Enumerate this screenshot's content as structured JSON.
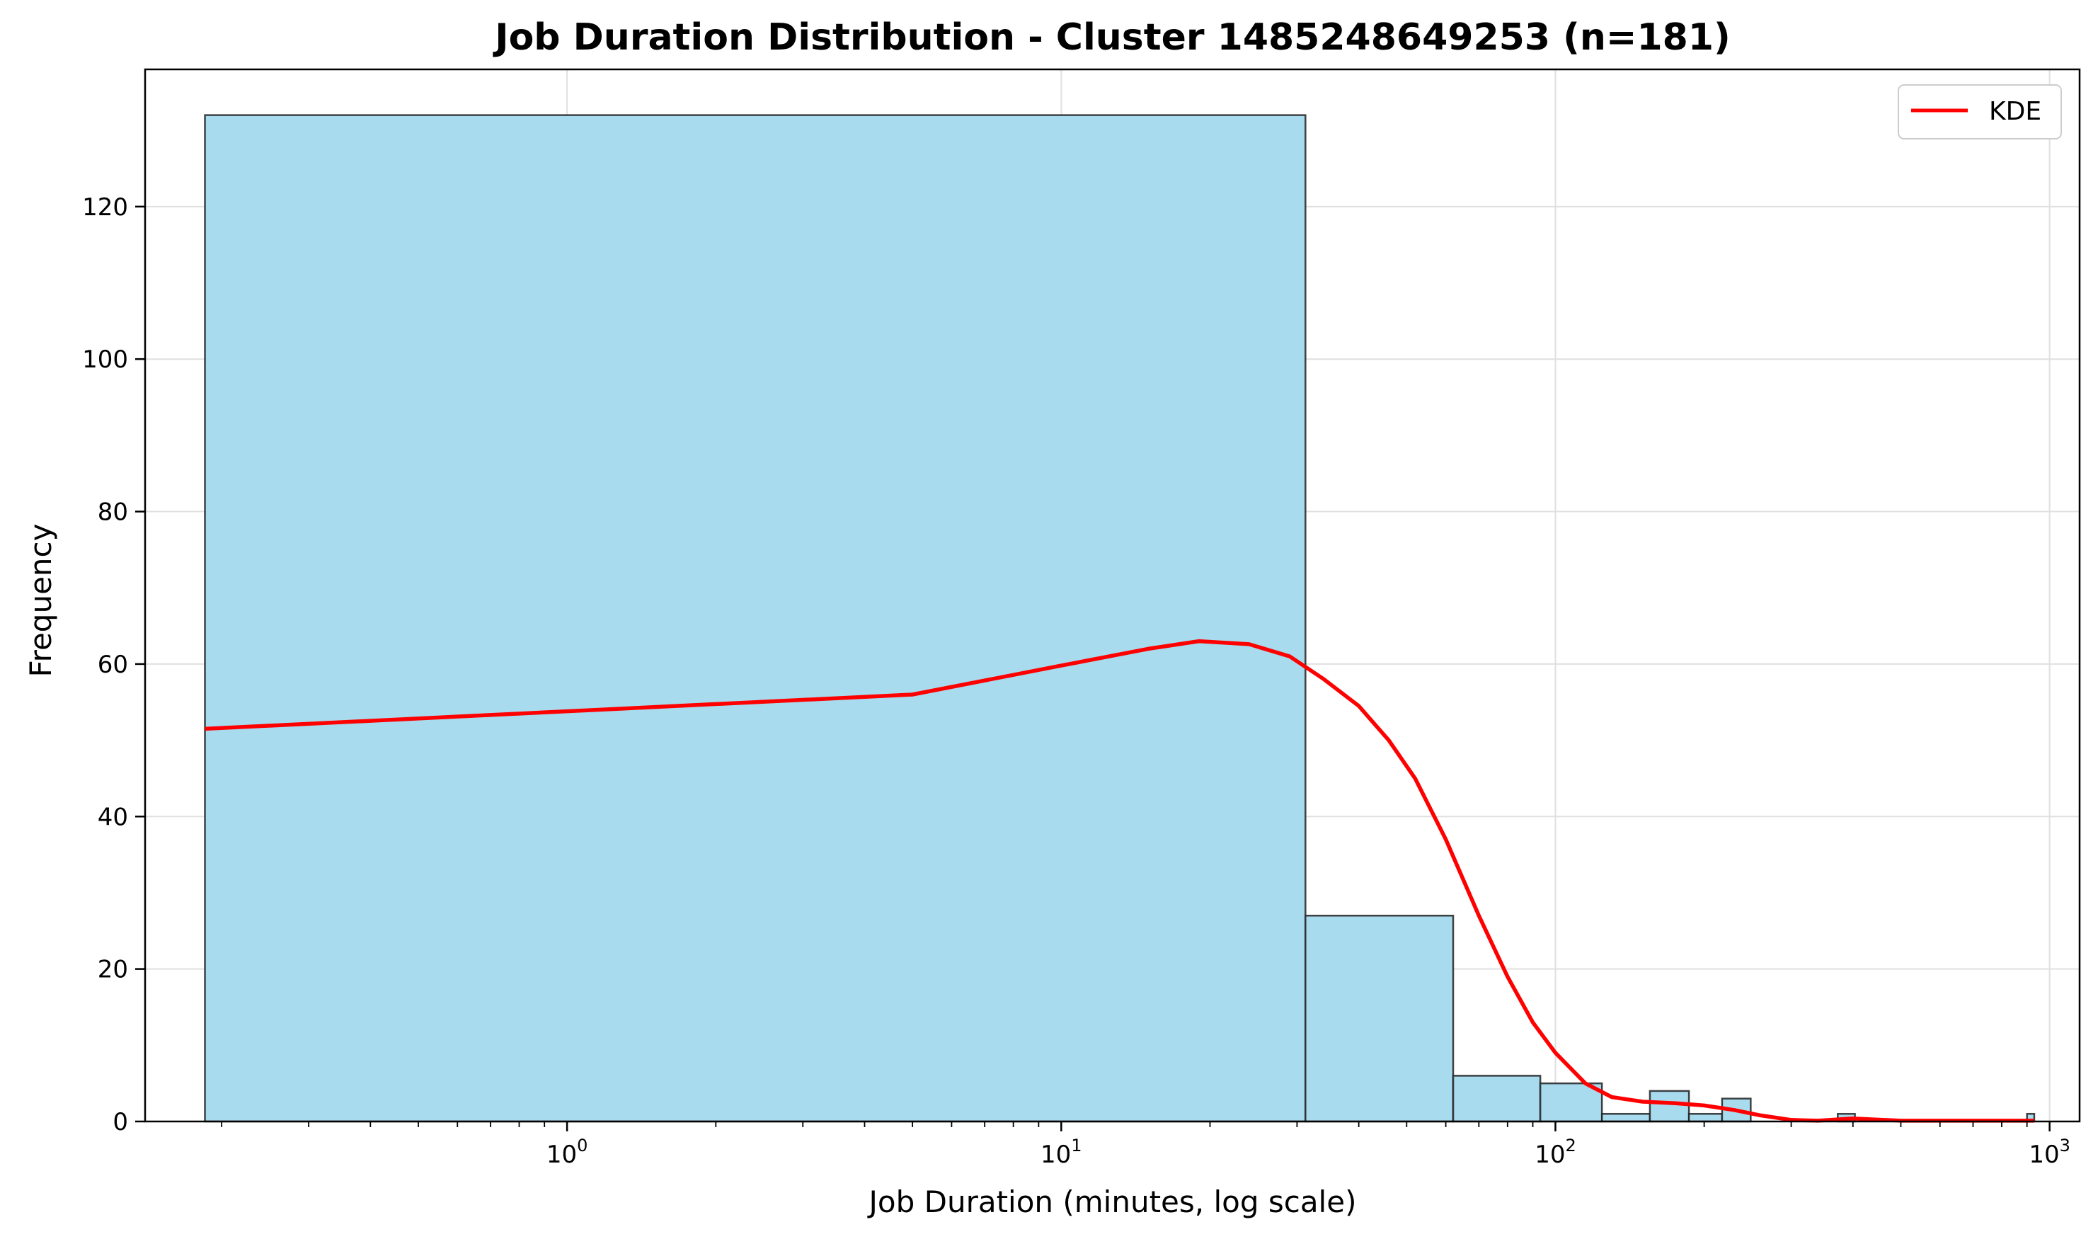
{
  "chart_data": {
    "type": "bar",
    "title": "Job Duration Distribution - Cluster 1485248649253 (n=181)",
    "xlabel": "Job Duration (minutes, log scale)",
    "ylabel": "Frequency",
    "x_scale": "log",
    "xlim": [
      0.14,
      1150
    ],
    "ylim": [
      0,
      138
    ],
    "x_ticks": [
      1,
      10,
      100,
      1000
    ],
    "x_tick_labels": [
      {
        "base": "10",
        "exp": "0"
      },
      {
        "base": "10",
        "exp": "1"
      },
      {
        "base": "10",
        "exp": "2"
      },
      {
        "base": "10",
        "exp": "3"
      }
    ],
    "y_ticks": [
      0,
      20,
      40,
      60,
      80,
      100,
      120
    ],
    "y_tick_labels": [
      "0",
      "20",
      "40",
      "60",
      "80",
      "100",
      "120"
    ],
    "grid": true,
    "bins": [
      {
        "x0": 0.185,
        "x1": 31.2,
        "count": 132
      },
      {
        "x0": 31.2,
        "x1": 62.1,
        "count": 27
      },
      {
        "x0": 62.1,
        "x1": 93.2,
        "count": 6
      },
      {
        "x0": 93.2,
        "x1": 124.2,
        "count": 5
      },
      {
        "x0": 124.2,
        "x1": 155.3,
        "count": 1
      },
      {
        "x0": 155.3,
        "x1": 186.3,
        "count": 4
      },
      {
        "x0": 186.3,
        "x1": 217.4,
        "count": 1
      },
      {
        "x0": 217.4,
        "x1": 248.4,
        "count": 3
      },
      {
        "x0": 372.6,
        "x1": 403.7,
        "count": 1
      },
      {
        "x0": 900,
        "x1": 931,
        "count": 1
      }
    ],
    "series": [
      {
        "name": "KDE",
        "color": "#ff0000",
        "x": [
          0.185,
          5,
          10,
          15,
          19,
          24,
          29,
          34,
          40,
          46,
          52,
          60,
          70,
          80,
          90,
          100,
          115,
          130,
          150,
          175,
          200,
          230,
          260,
          300,
          340,
          400,
          500,
          700,
          930
        ],
        "y": [
          51.5,
          56,
          59.8,
          62,
          63,
          62.6,
          61,
          58,
          54.5,
          50,
          45,
          37,
          27,
          19,
          13,
          9,
          5,
          3.2,
          2.6,
          2.4,
          2.1,
          1.5,
          0.8,
          0.2,
          0.1,
          0.4,
          0.1,
          0.1,
          0.1
        ]
      }
    ],
    "bar_color": "#a8dbee",
    "bar_edge_color": "#222222",
    "legend": {
      "position": "top-right",
      "entries": [
        "KDE"
      ]
    }
  }
}
